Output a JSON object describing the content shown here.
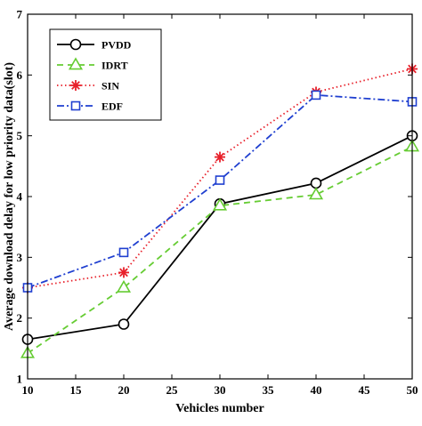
{
  "chart_data": {
    "type": "line",
    "title": "",
    "xlabel": "Vehicles number",
    "ylabel": "Average download delay for low priority data(slot)",
    "xlim": [
      10,
      50
    ],
    "ylim": [
      1,
      7
    ],
    "xticks": [
      10,
      15,
      20,
      25,
      30,
      35,
      40,
      45,
      50
    ],
    "yticks": [
      1,
      2,
      3,
      4,
      5,
      6,
      7
    ],
    "grid": false,
    "legend_position": "top-left",
    "x": [
      10,
      20,
      30,
      40,
      50
    ],
    "series": [
      {
        "name": "PVDD",
        "values": [
          1.65,
          1.9,
          3.88,
          4.22,
          5.0
        ],
        "color": "#000000",
        "line_style": "solid",
        "marker": "circle"
      },
      {
        "name": "IDRT",
        "values": [
          1.42,
          2.5,
          3.85,
          4.03,
          4.82
        ],
        "color": "#66cc33",
        "line_style": "dashed",
        "marker": "triangle"
      },
      {
        "name": "SIN",
        "values": [
          2.5,
          2.75,
          4.65,
          5.72,
          6.1
        ],
        "color": "#e8202a",
        "line_style": "dotted",
        "marker": "asterisk"
      },
      {
        "name": "EDF",
        "values": [
          2.5,
          3.08,
          4.27,
          5.67,
          5.56
        ],
        "color": "#1f3fd0",
        "line_style": "dashdot",
        "marker": "square"
      }
    ]
  }
}
